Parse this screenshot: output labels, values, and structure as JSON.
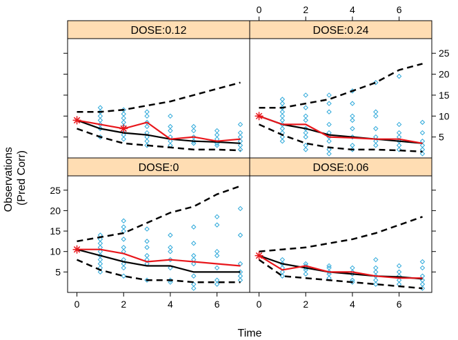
{
  "chart_data": {
    "type": "line+scatter",
    "xlabel": "Time",
    "ylabel": "Observations\n(Pred Corr)",
    "xlim": [
      -0.4,
      7.4
    ],
    "ylim": [
      0,
      28.5
    ],
    "x_ticks": [
      0,
      2,
      4,
      6
    ],
    "y_ticks": [
      5,
      10,
      15,
      20,
      25
    ],
    "colors": {
      "strip": "#FFDDB3",
      "points": "#2AA7D9",
      "observed_median": "#E8161B",
      "predicted_median": "#000000",
      "prediction_interval": "#000000",
      "frame": "#000000"
    },
    "panels": [
      {
        "label": "DOSE:0.12",
        "observed_median": [
          [
            0,
            9
          ],
          [
            1,
            8
          ],
          [
            2,
            7
          ],
          [
            3,
            8.5
          ],
          [
            4,
            4.5
          ],
          [
            5,
            5
          ],
          [
            6,
            4
          ],
          [
            7,
            4.5
          ]
        ],
        "observed_markers": [
          [
            0,
            9
          ],
          [
            2,
            7
          ]
        ],
        "predicted_median": [
          [
            0,
            9
          ],
          [
            1,
            7
          ],
          [
            2,
            6
          ],
          [
            3,
            5.5
          ],
          [
            4,
            4.5
          ],
          [
            5,
            4
          ],
          [
            6,
            3.8
          ],
          [
            7,
            3.5
          ]
        ],
        "pi_upper": [
          [
            0,
            11
          ],
          [
            1,
            11
          ],
          [
            2,
            11.5
          ],
          [
            3,
            12.5
          ],
          [
            4,
            13.5
          ],
          [
            5,
            15
          ],
          [
            6,
            16.5
          ],
          [
            7,
            18
          ]
        ],
        "pi_lower": [
          [
            0,
            7
          ],
          [
            1,
            5
          ],
          [
            2,
            3.5
          ],
          [
            3,
            3
          ],
          [
            4,
            2.5
          ],
          [
            5,
            2
          ],
          [
            6,
            2
          ],
          [
            7,
            1.8
          ]
        ],
        "points": [
          [
            1,
            12
          ],
          [
            1,
            11
          ],
          [
            1,
            10
          ],
          [
            1,
            9
          ],
          [
            1,
            8
          ],
          [
            1,
            7
          ],
          [
            1,
            5
          ],
          [
            2,
            11.5
          ],
          [
            2,
            10.5
          ],
          [
            2,
            9.5
          ],
          [
            2,
            8.5
          ],
          [
            2,
            7.5
          ],
          [
            2,
            6.5
          ],
          [
            2,
            5.5
          ],
          [
            2,
            4.5
          ],
          [
            3,
            11
          ],
          [
            3,
            10
          ],
          [
            3,
            8.5
          ],
          [
            3,
            7.5
          ],
          [
            3,
            6
          ],
          [
            3,
            5
          ],
          [
            3,
            4
          ],
          [
            3,
            3
          ],
          [
            4,
            10
          ],
          [
            4,
            7.5
          ],
          [
            4,
            6.5
          ],
          [
            4,
            5
          ],
          [
            4,
            4
          ],
          [
            4,
            3
          ],
          [
            5,
            7.5
          ],
          [
            5,
            6.5
          ],
          [
            5,
            5
          ],
          [
            5,
            4
          ],
          [
            5,
            3.5
          ],
          [
            6,
            6.5
          ],
          [
            6,
            5.5
          ],
          [
            6,
            4.5
          ],
          [
            6,
            3.5
          ],
          [
            6,
            3
          ],
          [
            7,
            8
          ],
          [
            7,
            6
          ],
          [
            7,
            5
          ],
          [
            7,
            4
          ],
          [
            7,
            3
          ],
          [
            7,
            2
          ]
        ]
      },
      {
        "label": "DOSE:0.24",
        "observed_median": [
          [
            0,
            10
          ],
          [
            1,
            8
          ],
          [
            2,
            8
          ],
          [
            3,
            5
          ],
          [
            4,
            4.8
          ],
          [
            5,
            4.5
          ],
          [
            6,
            4.5
          ],
          [
            7,
            3.5
          ]
        ],
        "observed_markers": [
          [
            0,
            10
          ]
        ],
        "predicted_median": [
          [
            0,
            10
          ],
          [
            1,
            8
          ],
          [
            2,
            7
          ],
          [
            3,
            5.5
          ],
          [
            4,
            5
          ],
          [
            5,
            4.5
          ],
          [
            6,
            4
          ],
          [
            7,
            3.5
          ]
        ],
        "pi_upper": [
          [
            0,
            12
          ],
          [
            1,
            12
          ],
          [
            2,
            13
          ],
          [
            3,
            14
          ],
          [
            4,
            16
          ],
          [
            5,
            18
          ],
          [
            6,
            21
          ],
          [
            7,
            22.5
          ]
        ],
        "pi_lower": [
          [
            0,
            8
          ],
          [
            1,
            5.5
          ],
          [
            2,
            3.5
          ],
          [
            3,
            2.5
          ],
          [
            4,
            2
          ],
          [
            5,
            2
          ],
          [
            6,
            1.8
          ],
          [
            7,
            1.5
          ]
        ],
        "points": [
          [
            1,
            14
          ],
          [
            1,
            13
          ],
          [
            1,
            12
          ],
          [
            1,
            11
          ],
          [
            1,
            10
          ],
          [
            1,
            9
          ],
          [
            1,
            8
          ],
          [
            1,
            7
          ],
          [
            1,
            6
          ],
          [
            1,
            5
          ],
          [
            1,
            4
          ],
          [
            2,
            15
          ],
          [
            2,
            12
          ],
          [
            2,
            10
          ],
          [
            2,
            9
          ],
          [
            2,
            7
          ],
          [
            2,
            6
          ],
          [
            2,
            5
          ],
          [
            2,
            3
          ],
          [
            2,
            2
          ],
          [
            3,
            15
          ],
          [
            3,
            13
          ],
          [
            3,
            11
          ],
          [
            3,
            8
          ],
          [
            3,
            6
          ],
          [
            3,
            5
          ],
          [
            3,
            4
          ],
          [
            3,
            2
          ],
          [
            3,
            1
          ],
          [
            4,
            16
          ],
          [
            4,
            13
          ],
          [
            4,
            10
          ],
          [
            4,
            9
          ],
          [
            4,
            7
          ],
          [
            4,
            5
          ],
          [
            4,
            3
          ],
          [
            4,
            2
          ],
          [
            5,
            18
          ],
          [
            5,
            11
          ],
          [
            5,
            10
          ],
          [
            5,
            7
          ],
          [
            5,
            5
          ],
          [
            5,
            4
          ],
          [
            5,
            3
          ],
          [
            6,
            19.5
          ],
          [
            6,
            8
          ],
          [
            6,
            6
          ],
          [
            6,
            5
          ],
          [
            6,
            4
          ],
          [
            6,
            3
          ],
          [
            6,
            2
          ],
          [
            7,
            8.5
          ],
          [
            7,
            6
          ],
          [
            7,
            4
          ],
          [
            7,
            3
          ],
          [
            7,
            2
          ],
          [
            7,
            1
          ]
        ]
      },
      {
        "label": "DOSE:0",
        "observed_median": [
          [
            0,
            10.5
          ],
          [
            1,
            10.5
          ],
          [
            2,
            9.5
          ],
          [
            3,
            7.5
          ],
          [
            4,
            8
          ],
          [
            5,
            7.5
          ],
          [
            6,
            7
          ],
          [
            7,
            6.5
          ]
        ],
        "observed_markers": [
          [
            0,
            10.5
          ]
        ],
        "predicted_median": [
          [
            0,
            10.5
          ],
          [
            1,
            9
          ],
          [
            2,
            7.5
          ],
          [
            3,
            6.5
          ],
          [
            4,
            6.5
          ],
          [
            5,
            5
          ],
          [
            6,
            5
          ],
          [
            7,
            5
          ]
        ],
        "pi_upper": [
          [
            0,
            12.5
          ],
          [
            1,
            13.5
          ],
          [
            2,
            14.5
          ],
          [
            3,
            17
          ],
          [
            4,
            19.5
          ],
          [
            5,
            21
          ],
          [
            6,
            24
          ],
          [
            7,
            26
          ]
        ],
        "pi_lower": [
          [
            0,
            8
          ],
          [
            1,
            5.5
          ],
          [
            2,
            4
          ],
          [
            3,
            3
          ],
          [
            4,
            3
          ],
          [
            5,
            2.5
          ],
          [
            6,
            2.5
          ],
          [
            7,
            2.5
          ]
        ],
        "points": [
          [
            1,
            14
          ],
          [
            1,
            13
          ],
          [
            1,
            12
          ],
          [
            1,
            11
          ],
          [
            1,
            10
          ],
          [
            1,
            9
          ],
          [
            1,
            8
          ],
          [
            1,
            7
          ],
          [
            1,
            6
          ],
          [
            1,
            5
          ],
          [
            2,
            17.5
          ],
          [
            2,
            16
          ],
          [
            2,
            15
          ],
          [
            2,
            13
          ],
          [
            2,
            11
          ],
          [
            2,
            10
          ],
          [
            2,
            8
          ],
          [
            2,
            7
          ],
          [
            2,
            6
          ],
          [
            2,
            4
          ],
          [
            3,
            15.5
          ],
          [
            3,
            12.5
          ],
          [
            3,
            11
          ],
          [
            3,
            9
          ],
          [
            3,
            8
          ],
          [
            3,
            7
          ],
          [
            3,
            3
          ],
          [
            4,
            14
          ],
          [
            4,
            11
          ],
          [
            4,
            10
          ],
          [
            4,
            8
          ],
          [
            4,
            6
          ],
          [
            4,
            3
          ],
          [
            4,
            2.5
          ],
          [
            5,
            16
          ],
          [
            5,
            12
          ],
          [
            5,
            9
          ],
          [
            5,
            8
          ],
          [
            5,
            7
          ],
          [
            5,
            4
          ],
          [
            5,
            2
          ],
          [
            5,
            1
          ],
          [
            6,
            18.5
          ],
          [
            6,
            16.5
          ],
          [
            6,
            10
          ],
          [
            6,
            9
          ],
          [
            6,
            6
          ],
          [
            6,
            3
          ],
          [
            6,
            2
          ],
          [
            7,
            20.5
          ],
          [
            7,
            14
          ],
          [
            7,
            7
          ],
          [
            7,
            5
          ],
          [
            7,
            4
          ],
          [
            7,
            3
          ]
        ]
      },
      {
        "label": "DOSE:0.06",
        "observed_median": [
          [
            0,
            9
          ],
          [
            1,
            5.5
          ],
          [
            2,
            6.5
          ],
          [
            3,
            5
          ],
          [
            4,
            5
          ],
          [
            5,
            4
          ],
          [
            6,
            3.5
          ],
          [
            7,
            3.5
          ]
        ],
        "observed_markers": [
          [
            0,
            9
          ]
        ],
        "predicted_median": [
          [
            0,
            9
          ],
          [
            1,
            7
          ],
          [
            2,
            6
          ],
          [
            3,
            5
          ],
          [
            4,
            4.5
          ],
          [
            5,
            4
          ],
          [
            6,
            3.8
          ],
          [
            7,
            3.3
          ]
        ],
        "pi_upper": [
          [
            0,
            10
          ],
          [
            1,
            10.5
          ],
          [
            2,
            11
          ],
          [
            3,
            12
          ],
          [
            4,
            13
          ],
          [
            5,
            14.5
          ],
          [
            6,
            16.5
          ],
          [
            7,
            18.5
          ]
        ],
        "pi_lower": [
          [
            0,
            8
          ],
          [
            1,
            4
          ],
          [
            2,
            3.5
          ],
          [
            3,
            3
          ],
          [
            4,
            2.5
          ],
          [
            5,
            2
          ],
          [
            6,
            1.5
          ],
          [
            7,
            1
          ]
        ],
        "points": [
          [
            1,
            8
          ],
          [
            1,
            7
          ],
          [
            1,
            6
          ],
          [
            1,
            5
          ],
          [
            1,
            4
          ],
          [
            2,
            7
          ],
          [
            2,
            6.5
          ],
          [
            2,
            6
          ],
          [
            2,
            5.5
          ],
          [
            2,
            4.5
          ],
          [
            3,
            6.5
          ],
          [
            3,
            6
          ],
          [
            3,
            5
          ],
          [
            3,
            4.5
          ],
          [
            3,
            3.5
          ],
          [
            4,
            6
          ],
          [
            4,
            5
          ],
          [
            4,
            4.5
          ],
          [
            4,
            3
          ],
          [
            4,
            2.5
          ],
          [
            5,
            8
          ],
          [
            5,
            6
          ],
          [
            5,
            5
          ],
          [
            5,
            4
          ],
          [
            5,
            3
          ],
          [
            5,
            2
          ],
          [
            6,
            6.5
          ],
          [
            6,
            5
          ],
          [
            6,
            4
          ],
          [
            6,
            3
          ],
          [
            6,
            2
          ],
          [
            7,
            7.5
          ],
          [
            7,
            6
          ],
          [
            7,
            4
          ],
          [
            7,
            3
          ],
          [
            7,
            2
          ],
          [
            7,
            1
          ]
        ]
      }
    ]
  }
}
